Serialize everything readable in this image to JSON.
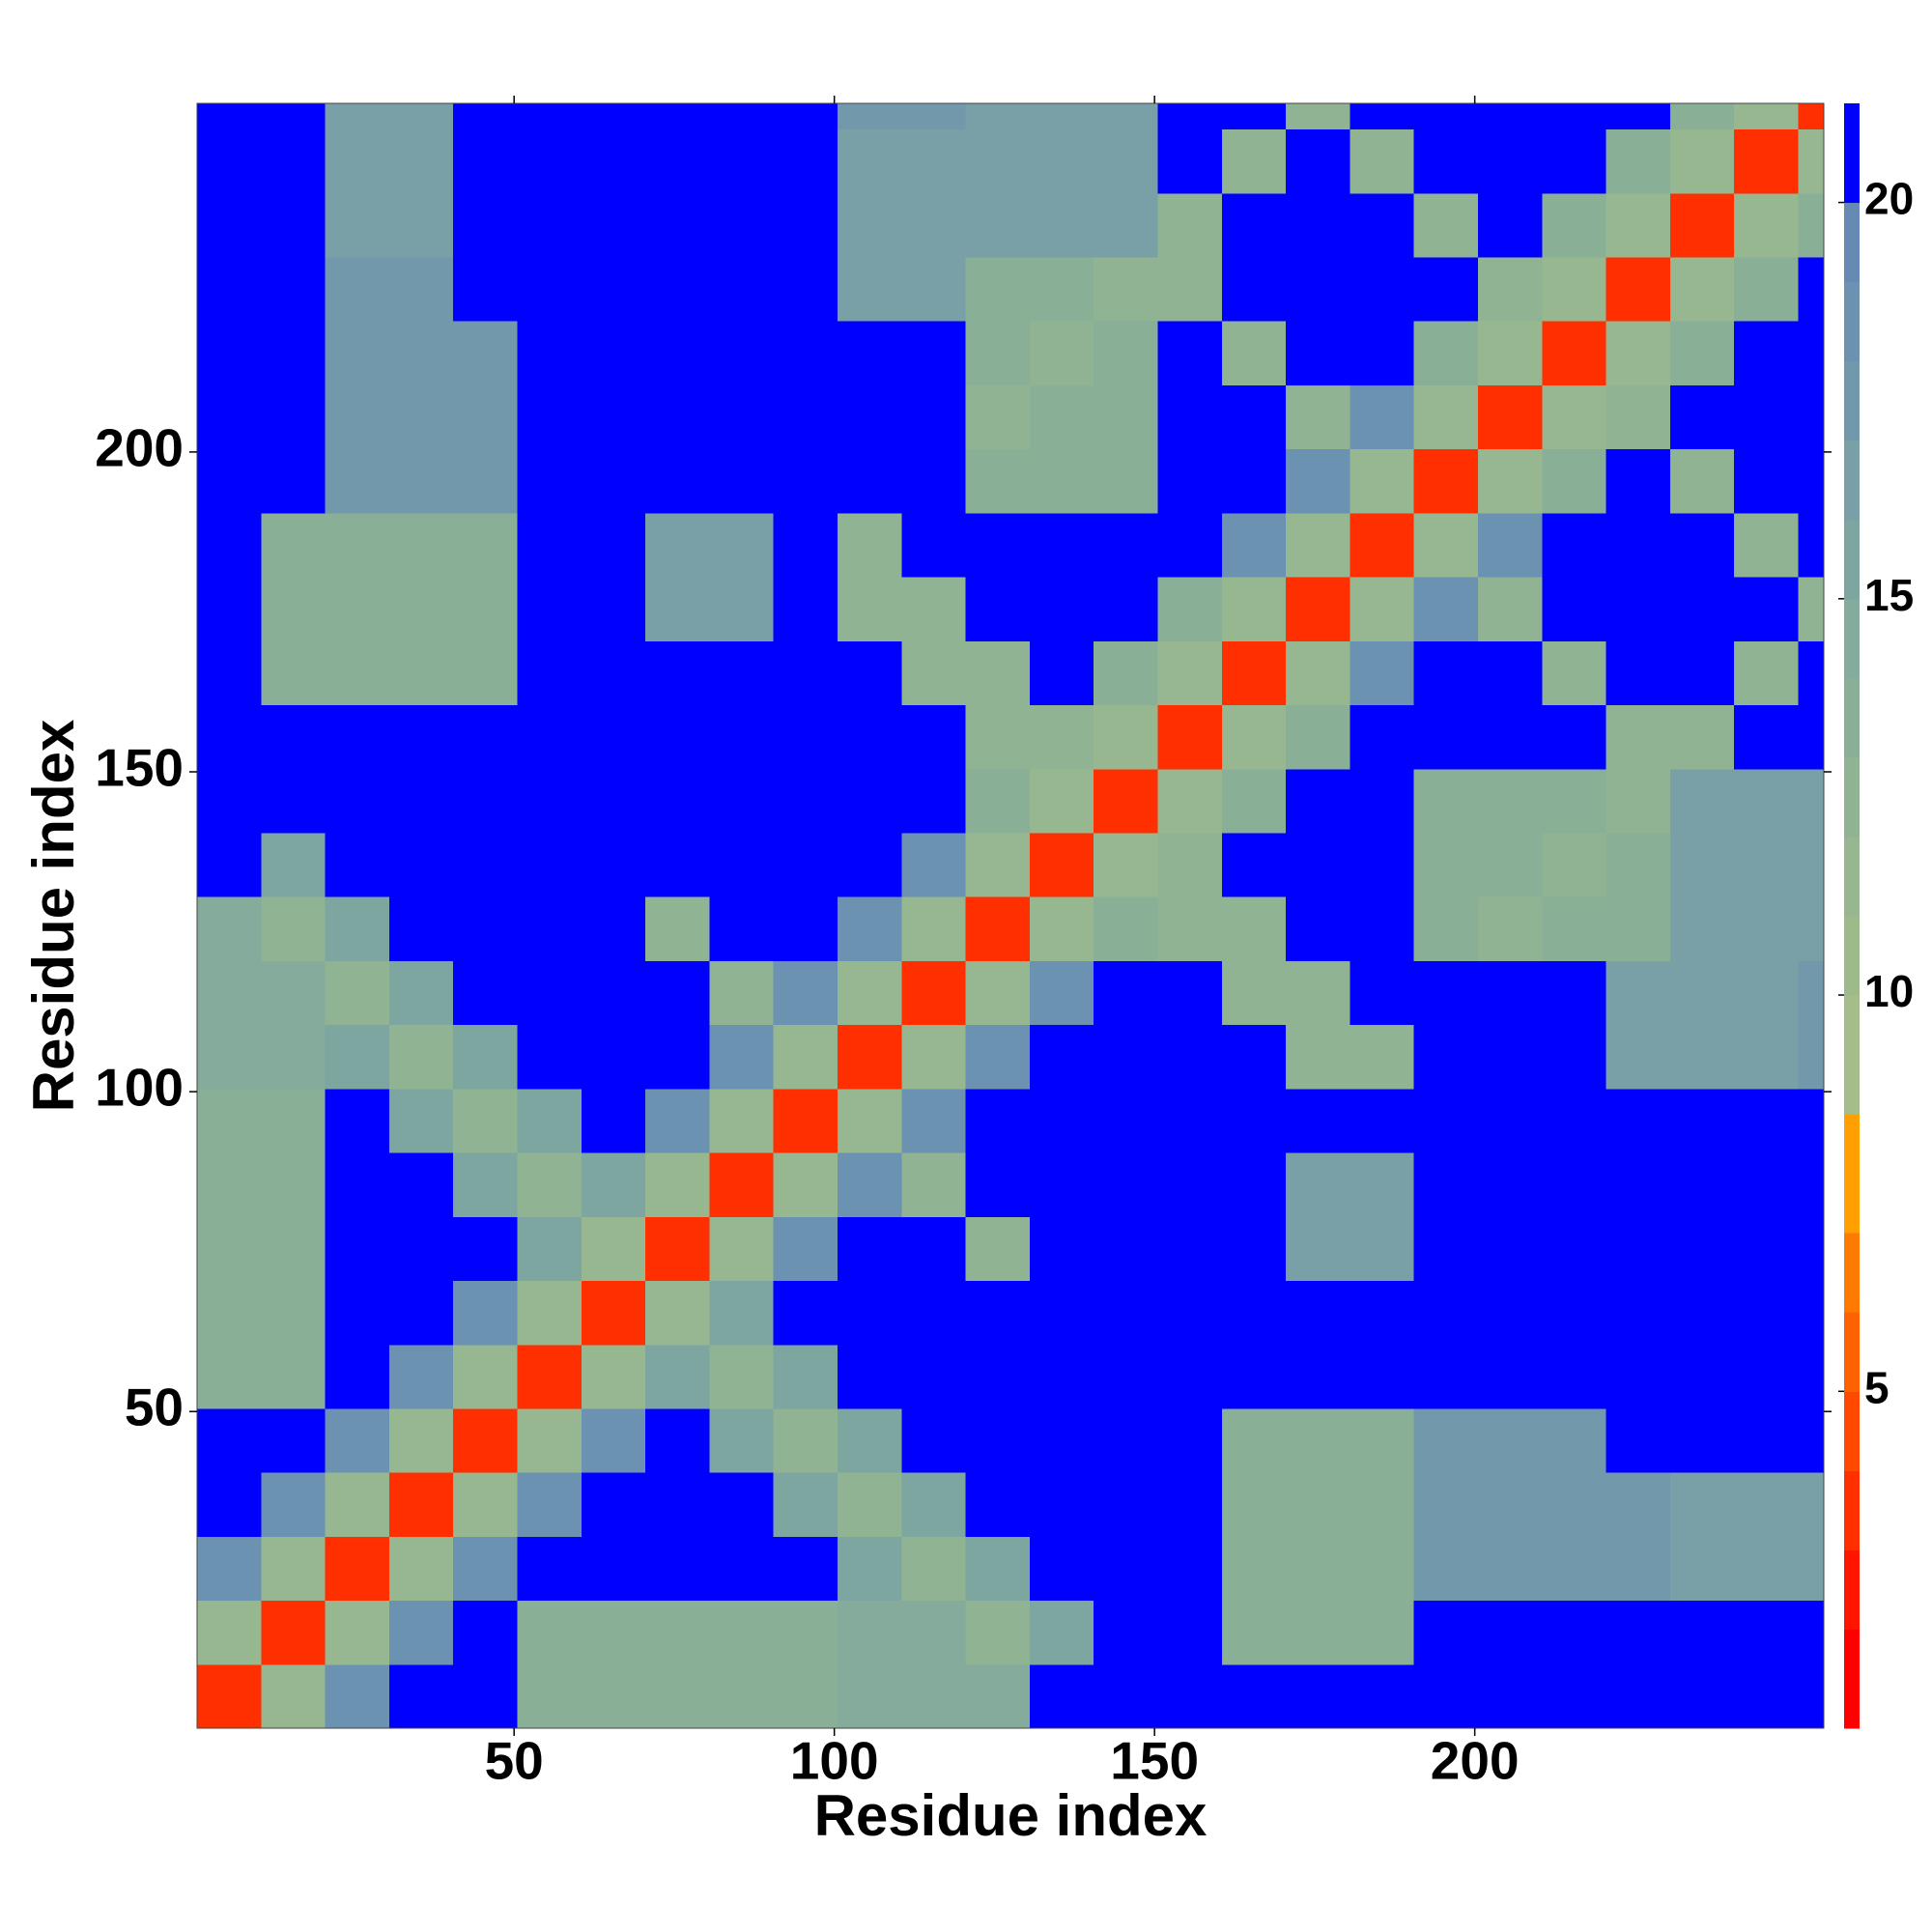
{
  "chart_data": {
    "type": "heatmap",
    "xlabel": "Residue index",
    "ylabel": "Residue index",
    "xlim": [
      0.5,
      254.5
    ],
    "ylim": [
      0.5,
      254.5
    ],
    "xticks": [
      50,
      100,
      150,
      200
    ],
    "yticks": [
      50,
      100,
      150,
      200
    ],
    "x_bins": [
      0.5,
      10.5,
      20.5,
      30.5,
      40.5,
      50.5,
      60.5,
      70.5,
      80.5,
      90.5,
      100.5,
      110.5,
      120.5,
      130.5,
      140.5,
      150.5,
      160.5,
      170.5,
      180.5,
      190.5,
      200.5,
      210.5,
      220.5,
      230.5,
      240.5,
      250.5,
      254.5
    ],
    "y_bins": [
      0.5,
      10.5,
      20.5,
      30.5,
      40.5,
      50.5,
      60.5,
      70.5,
      80.5,
      90.5,
      100.5,
      110.5,
      120.5,
      130.5,
      140.5,
      150.5,
      160.5,
      170.5,
      180.5,
      190.5,
      200.5,
      210.5,
      220.5,
      230.5,
      240.5,
      250.5,
      254.5
    ],
    "z": [
      [
        4,
        12,
        19,
        21,
        21,
        14,
        14,
        14,
        14,
        14,
        15,
        15,
        15,
        21,
        21,
        21,
        21,
        21,
        21,
        21,
        21,
        21,
        21,
        21,
        21,
        21
      ],
      [
        12,
        4,
        12,
        19,
        21,
        14,
        14,
        14,
        14,
        14,
        15,
        15,
        13,
        16,
        21,
        21,
        14,
        14,
        14,
        21,
        21,
        21,
        21,
        21,
        21,
        21
      ],
      [
        19,
        12,
        4,
        12,
        19,
        21,
        21,
        21,
        21,
        21,
        16,
        13,
        16,
        21,
        21,
        21,
        14,
        14,
        14,
        18,
        18,
        18,
        18,
        17,
        17,
        17
      ],
      [
        21,
        19,
        12,
        4,
        12,
        19,
        21,
        21,
        21,
        16,
        13,
        16,
        21,
        21,
        21,
        21,
        14,
        14,
        14,
        18,
        18,
        18,
        18,
        17,
        17,
        17
      ],
      [
        21,
        21,
        19,
        12,
        4,
        12,
        19,
        21,
        16,
        13,
        16,
        21,
        21,
        21,
        21,
        21,
        14,
        14,
        14,
        18,
        18,
        18,
        21,
        21,
        21,
        21
      ],
      [
        14,
        14,
        21,
        19,
        12,
        4,
        12,
        16,
        13,
        16,
        21,
        21,
        21,
        21,
        21,
        21,
        21,
        21,
        21,
        21,
        21,
        21,
        21,
        21,
        21,
        21
      ],
      [
        14,
        14,
        21,
        21,
        19,
        12,
        4,
        12,
        16,
        21,
        21,
        21,
        21,
        21,
        21,
        21,
        21,
        21,
        21,
        21,
        21,
        21,
        21,
        21,
        21,
        21
      ],
      [
        14,
        14,
        21,
        21,
        21,
        16,
        12,
        4,
        12,
        19,
        21,
        21,
        13,
        21,
        21,
        21,
        21,
        17,
        17,
        21,
        21,
        21,
        21,
        21,
        21,
        21
      ],
      [
        14,
        14,
        21,
        21,
        16,
        13,
        16,
        12,
        4,
        12,
        19,
        13,
        21,
        21,
        21,
        21,
        21,
        17,
        17,
        21,
        21,
        21,
        21,
        21,
        21,
        21
      ],
      [
        14,
        14,
        21,
        16,
        13,
        16,
        21,
        19,
        12,
        4,
        12,
        19,
        21,
        21,
        21,
        21,
        21,
        21,
        21,
        21,
        21,
        21,
        21,
        21,
        21,
        21
      ],
      [
        15,
        15,
        16,
        13,
        16,
        21,
        21,
        21,
        19,
        12,
        4,
        12,
        19,
        21,
        21,
        21,
        21,
        13,
        13,
        21,
        21,
        21,
        17,
        17,
        17,
        18
      ],
      [
        15,
        15,
        13,
        16,
        21,
        21,
        21,
        21,
        13,
        19,
        12,
        4,
        12,
        19,
        21,
        21,
        13,
        13,
        21,
        21,
        21,
        21,
        17,
        17,
        17,
        18
      ],
      [
        15,
        13,
        16,
        21,
        21,
        21,
        21,
        13,
        21,
        21,
        19,
        12,
        4,
        12,
        14,
        13,
        13,
        21,
        21,
        14,
        13,
        14,
        14,
        17,
        17,
        17
      ],
      [
        21,
        16,
        21,
        21,
        21,
        21,
        21,
        21,
        21,
        21,
        21,
        19,
        12,
        4,
        12,
        13,
        21,
        21,
        21,
        14,
        14,
        13,
        14,
        17,
        17,
        17
      ],
      [
        21,
        21,
        21,
        21,
        21,
        21,
        21,
        21,
        21,
        21,
        21,
        21,
        14,
        12,
        4,
        12,
        14,
        21,
        21,
        14,
        14,
        14,
        13,
        17,
        17,
        17
      ],
      [
        21,
        21,
        21,
        21,
        21,
        21,
        21,
        21,
        21,
        21,
        21,
        21,
        13,
        13,
        12,
        4,
        12,
        14,
        21,
        21,
        21,
        21,
        13,
        13,
        21,
        21
      ],
      [
        21,
        14,
        14,
        14,
        14,
        21,
        21,
        21,
        21,
        21,
        21,
        13,
        13,
        21,
        14,
        12,
        4,
        12,
        19,
        21,
        21,
        13,
        21,
        21,
        13,
        21
      ],
      [
        21,
        14,
        14,
        14,
        14,
        21,
        21,
        17,
        17,
        21,
        13,
        13,
        21,
        21,
        21,
        14,
        12,
        4,
        12,
        19,
        13,
        21,
        21,
        21,
        21,
        13
      ],
      [
        21,
        14,
        14,
        14,
        14,
        21,
        21,
        17,
        17,
        21,
        13,
        21,
        21,
        21,
        21,
        21,
        19,
        12,
        4,
        12,
        19,
        21,
        21,
        21,
        13,
        21
      ],
      [
        21,
        21,
        18,
        18,
        18,
        21,
        21,
        21,
        21,
        21,
        21,
        21,
        14,
        14,
        14,
        21,
        21,
        19,
        12,
        4,
        12,
        14,
        21,
        13,
        21,
        21
      ],
      [
        21,
        21,
        18,
        18,
        18,
        21,
        21,
        21,
        21,
        21,
        21,
        21,
        13,
        14,
        14,
        21,
        21,
        13,
        19,
        12,
        4,
        12,
        13,
        21,
        21,
        21
      ],
      [
        21,
        21,
        18,
        18,
        18,
        21,
        21,
        21,
        21,
        21,
        21,
        21,
        14,
        13,
        14,
        21,
        13,
        21,
        21,
        14,
        12,
        4,
        12,
        14,
        21,
        21
      ],
      [
        21,
        21,
        18,
        18,
        21,
        21,
        21,
        21,
        21,
        21,
        17,
        17,
        14,
        14,
        13,
        13,
        21,
        21,
        21,
        21,
        13,
        12,
        4,
        12,
        14,
        21
      ],
      [
        21,
        21,
        17,
        17,
        21,
        21,
        21,
        21,
        21,
        21,
        17,
        17,
        17,
        17,
        17,
        13,
        21,
        21,
        21,
        13,
        21,
        14,
        12,
        4,
        12,
        14
      ],
      [
        21,
        21,
        17,
        17,
        21,
        21,
        21,
        21,
        21,
        21,
        17,
        17,
        17,
        17,
        17,
        21,
        13,
        21,
        13,
        21,
        21,
        21,
        14,
        12,
        4,
        12
      ],
      [
        21,
        21,
        17,
        17,
        21,
        21,
        21,
        21,
        21,
        21,
        18,
        18,
        17,
        17,
        17,
        21,
        21,
        13,
        21,
        21,
        21,
        21,
        21,
        14,
        12,
        4
      ]
    ],
    "colorbar": {
      "levels": [
        0.75,
        2,
        3,
        4,
        5,
        6,
        7,
        8.5,
        10,
        11,
        12,
        13,
        14,
        15,
        16,
        17,
        18,
        19,
        20,
        21.25
      ],
      "colors": [
        "#ff0000",
        "#ff1500",
        "#ff2f00",
        "#ff4800",
        "#ff6000",
        "#ff7a00",
        "#ffa000",
        "#a5bd88",
        "#9dba8b",
        "#96b78f",
        "#90b393",
        "#8aaf97",
        "#84ab9c",
        "#7ea6a1",
        "#78a0a6",
        "#7299ab",
        "#6b92b0",
        "#658bb4",
        "#0000ff"
      ],
      "ticks": [
        5,
        10,
        15,
        20
      ]
    }
  }
}
